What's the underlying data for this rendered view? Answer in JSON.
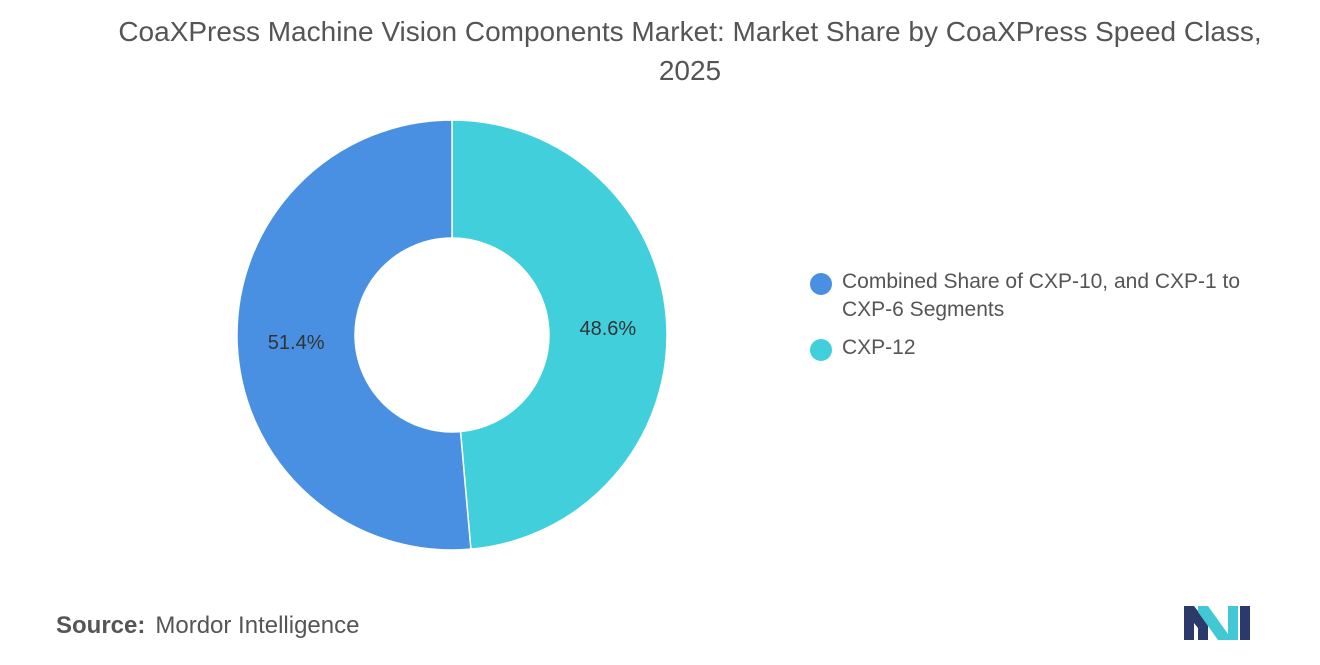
{
  "chart_data": {
    "type": "pie",
    "variant": "donut",
    "title": "CoaXPress Machine Vision Components Market: Market Share by CoaXPress Speed Class, 2025",
    "slices": [
      {
        "label": "Combined Share of CXP-10, and CXP-1 to CXP-6 Segments",
        "value": 51.4,
        "display": "51.4%",
        "color": "#4a90e2"
      },
      {
        "label": "CXP-12",
        "value": 48.6,
        "display": "48.6%",
        "color": "#41d0db"
      }
    ],
    "legend_position": "right"
  },
  "source": {
    "label": "Source:",
    "text": "Mordor Intelligence"
  },
  "logo": {
    "name": "mordor-intelligence-logo",
    "colors": [
      "#2b3a6b",
      "#41c8d4"
    ]
  }
}
